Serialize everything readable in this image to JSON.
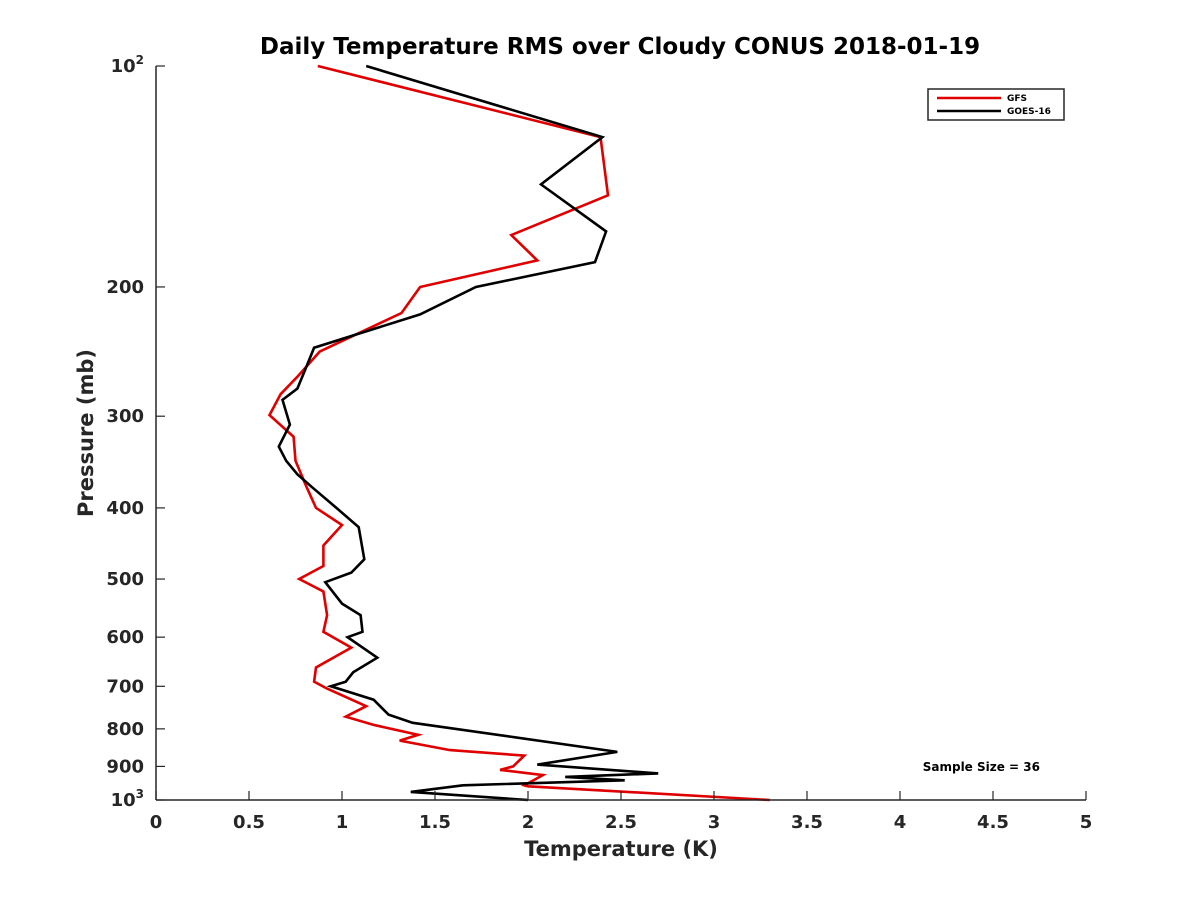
{
  "chart_data": {
    "type": "line",
    "title": "Daily Temperature RMS over Cloudy CONUS 2018-01-19",
    "xlabel": "Temperature (K)",
    "ylabel": "Pressure (mb)",
    "xlim": [
      0,
      5
    ],
    "ylim": [
      100,
      1000
    ],
    "y_scale": "log",
    "y_reversed": true,
    "grid": false,
    "legend_position": "top-right",
    "x_ticks": [
      "0",
      "0.5",
      "1",
      "1.5",
      "2",
      "2.5",
      "3",
      "3.5",
      "4",
      "4.5",
      "5"
    ],
    "y_ticks": [
      {
        "value": 100,
        "label": "10",
        "sup": "2"
      },
      {
        "value": 200,
        "label": "200",
        "sup": ""
      },
      {
        "value": 300,
        "label": "300",
        "sup": ""
      },
      {
        "value": 400,
        "label": "400",
        "sup": ""
      },
      {
        "value": 500,
        "label": "500",
        "sup": ""
      },
      {
        "value": 600,
        "label": "600",
        "sup": ""
      },
      {
        "value": 700,
        "label": "700",
        "sup": ""
      },
      {
        "value": 800,
        "label": "800",
        "sup": ""
      },
      {
        "value": 900,
        "label": "900",
        "sup": ""
      },
      {
        "value": 1000,
        "label": "10",
        "sup": "3"
      }
    ],
    "annotation": "Sample Size = 36",
    "series": [
      {
        "name": "GFS",
        "color": "#e00000",
        "points": [
          [
            0.87,
            100
          ],
          [
            2.39,
            125
          ],
          [
            2.43,
            150
          ],
          [
            1.91,
            170
          ],
          [
            2.05,
            184
          ],
          [
            1.42,
            200
          ],
          [
            1.32,
            217
          ],
          [
            0.88,
            245
          ],
          [
            0.76,
            265
          ],
          [
            0.67,
            280
          ],
          [
            0.61,
            299
          ],
          [
            0.74,
            320
          ],
          [
            0.75,
            345
          ],
          [
            0.81,
            375
          ],
          [
            0.86,
            400
          ],
          [
            1.0,
            422
          ],
          [
            0.9,
            450
          ],
          [
            0.9,
            480
          ],
          [
            0.77,
            500
          ],
          [
            0.9,
            520
          ],
          [
            0.92,
            560
          ],
          [
            0.9,
            590
          ],
          [
            1.05,
            620
          ],
          [
            0.86,
            660
          ],
          [
            0.85,
            690
          ],
          [
            0.92,
            705
          ],
          [
            1.13,
            745
          ],
          [
            1.02,
            770
          ],
          [
            1.17,
            790
          ],
          [
            1.41,
            815
          ],
          [
            1.31,
            830
          ],
          [
            1.58,
            855
          ],
          [
            1.98,
            870
          ],
          [
            1.92,
            900
          ],
          [
            1.85,
            910
          ],
          [
            2.08,
            925
          ],
          [
            1.98,
            955
          ],
          [
            2.0,
            958
          ],
          [
            3.3,
            1000
          ]
        ]
      },
      {
        "name": "GOES-16",
        "color": "#000000",
        "points": [
          [
            1.13,
            100
          ],
          [
            2.4,
            125
          ],
          [
            2.07,
            145
          ],
          [
            2.42,
            168
          ],
          [
            2.36,
            185
          ],
          [
            1.72,
            200
          ],
          [
            1.42,
            218
          ],
          [
            0.85,
            242
          ],
          [
            0.8,
            260
          ],
          [
            0.76,
            275
          ],
          [
            0.68,
            285
          ],
          [
            0.72,
            308
          ],
          [
            0.66,
            330
          ],
          [
            0.7,
            345
          ],
          [
            0.76,
            360
          ],
          [
            0.84,
            375
          ],
          [
            0.97,
            400
          ],
          [
            1.09,
            425
          ],
          [
            1.12,
            470
          ],
          [
            1.05,
            490
          ],
          [
            0.91,
            505
          ],
          [
            1.0,
            540
          ],
          [
            1.1,
            560
          ],
          [
            1.11,
            590
          ],
          [
            1.03,
            600
          ],
          [
            1.19,
            640
          ],
          [
            1.06,
            670
          ],
          [
            1.02,
            690
          ],
          [
            0.94,
            700
          ],
          [
            1.17,
            730
          ],
          [
            1.25,
            765
          ],
          [
            1.38,
            785
          ],
          [
            2.48,
            860
          ],
          [
            2.05,
            895
          ],
          [
            2.7,
            920
          ],
          [
            2.2,
            930
          ],
          [
            2.52,
            940
          ],
          [
            1.65,
            955
          ],
          [
            1.37,
            975
          ],
          [
            2.0,
            1000
          ]
        ]
      }
    ]
  }
}
